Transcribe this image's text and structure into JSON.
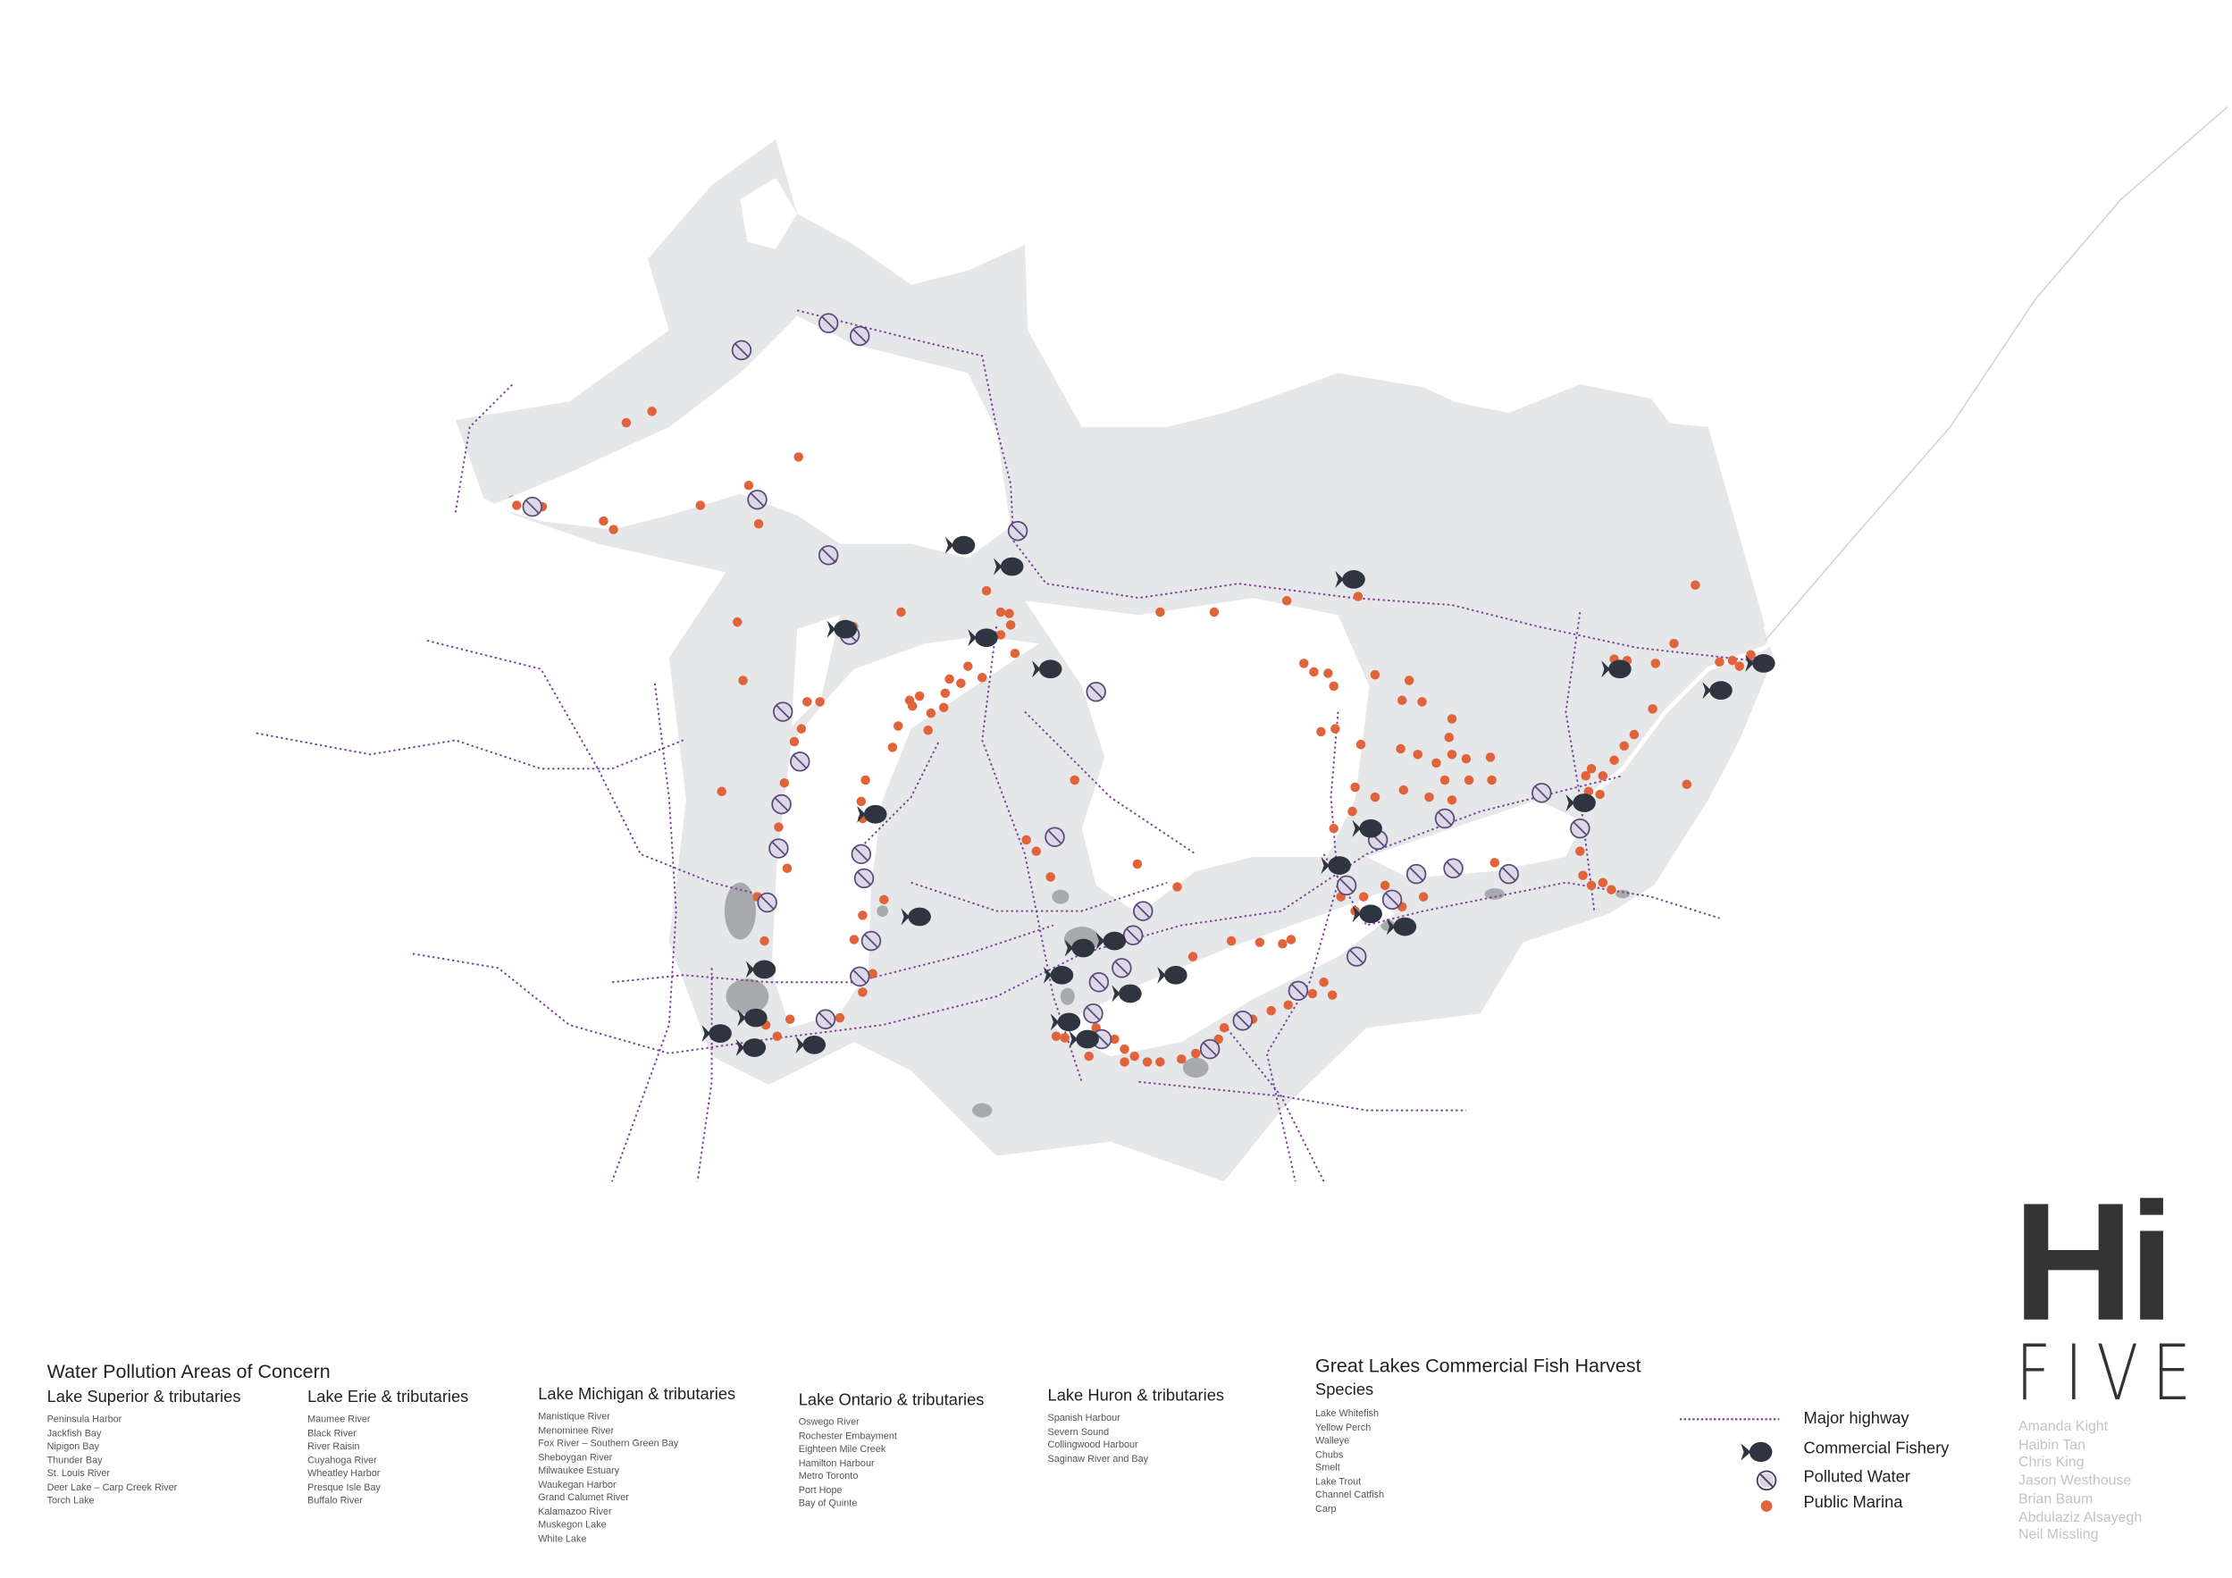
{
  "colors": {
    "land": "#e6e7e8",
    "urban": "#a7a9ac",
    "water": "#ffffff",
    "marina": "#e0633a",
    "fishery": "#2e3440",
    "highway": "#7b3fa0",
    "polluted": "#5a4a7a"
  },
  "pollution_legend": {
    "title": "Water Pollution Areas of Concern",
    "groups": [
      {
        "heading": "Lake Superior & tributaries",
        "items": [
          "Peninsula Harbor",
          "Jackfish Bay",
          "Nipigon Bay",
          "Thunder Bay",
          "St. Louis River",
          "Deer Lake – Carp Creek River",
          "Torch Lake"
        ]
      },
      {
        "heading": "Lake Erie & tributaries",
        "items": [
          "Maumee River",
          "Black River",
          "River Raisin",
          "Cuyahoga River",
          "Wheatley Harbor",
          "Presque Isle Bay",
          "Buffalo River"
        ]
      },
      {
        "heading": "Lake Michigan & tributaries",
        "items": [
          "Manistique River",
          "Menominee River",
          "Fox River – Southern Green Bay",
          "Sheboygan River",
          "Milwaukee Estuary",
          "Waukegan Harbor",
          "Grand Calumet River",
          "Kalamazoo River",
          "Muskegon Lake",
          "White Lake"
        ]
      },
      {
        "heading": "Lake Ontario & tributaries",
        "items": [
          "Oswego River",
          "Rochester Embayment",
          "Eighteen Mile Creek",
          "Hamilton Harbour",
          "Metro Toronto",
          "Port Hope",
          "Bay of Quinte"
        ]
      },
      {
        "heading": "Lake Huron & tributaries",
        "items": [
          "Spanish Harbour",
          "Severn Sound",
          "Collingwood Harbour",
          "Saginaw River and Bay"
        ]
      }
    ]
  },
  "fish_legend": {
    "title": "Great Lakes Commercial Fish Harvest",
    "subtitle": "Species",
    "items": [
      "Lake Whitefish",
      "Yellow Perch",
      "Walleye",
      "Chubs",
      "Smelt",
      "Lake Trout",
      "Channel Catfish",
      "Carp"
    ]
  },
  "map_key": [
    {
      "icon": "dotted-line",
      "label": "Major highway"
    },
    {
      "icon": "fish-icon",
      "label": "Commercial Fishery"
    },
    {
      "icon": "polluted-icon",
      "label": "Polluted Water"
    },
    {
      "icon": "dot-icon",
      "label": "Public Marina"
    }
  ],
  "logo": {
    "top": "Hi",
    "bottom": "FIVE"
  },
  "authors": [
    "Amanda Kight",
    "Haibin Tan",
    "Chris King",
    "Jason Westhouse",
    "Brian Baum",
    "Abdulaziz Alsayegh",
    "Neil Missling"
  ]
}
